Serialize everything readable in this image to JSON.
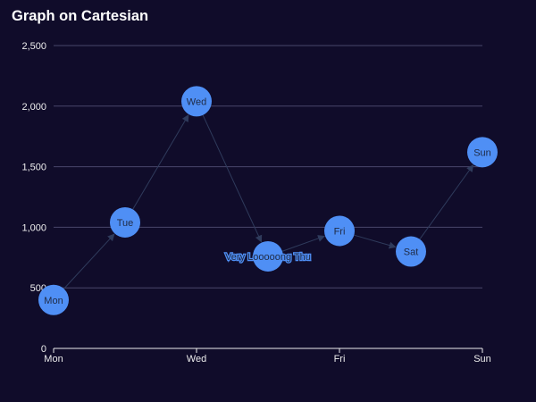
{
  "title": "Graph on Cartesian",
  "chart_data": {
    "type": "graph",
    "title": "Graph on Cartesian",
    "x_categories": [
      "Mon",
      "Tue",
      "Wed",
      "Thu",
      "Fri",
      "Sat",
      "Sun"
    ],
    "x_tick_labels": [
      "Mon",
      "Wed",
      "Fri",
      "Sun"
    ],
    "y_ticks": [
      0,
      500,
      1000,
      1500,
      2000,
      2500
    ],
    "y_tick_labels": [
      "0",
      "500",
      "1,000",
      "1,500",
      "2,000",
      "2,500"
    ],
    "ylim": [
      0,
      2500
    ],
    "grid": true,
    "nodes": [
      {
        "label": "Mon",
        "x": "Mon",
        "y": 400
      },
      {
        "label": "Tue",
        "x": "Tue",
        "y": 1040
      },
      {
        "label": "Wed",
        "x": "Wed",
        "y": 2040
      },
      {
        "label": "Very Looooong Thu",
        "x": "Thu",
        "y": 760
      },
      {
        "label": "Fri",
        "x": "Fri",
        "y": 970
      },
      {
        "label": "Sat",
        "x": "Sat",
        "y": 800
      },
      {
        "label": "Sun",
        "x": "Sun",
        "y": 1620
      }
    ],
    "links": [
      {
        "source": "Mon",
        "target": "Tue"
      },
      {
        "source": "Tue",
        "target": "Wed"
      },
      {
        "source": "Wed",
        "target": "Very Looooong Thu"
      },
      {
        "source": "Very Looooong Thu",
        "target": "Fri"
      },
      {
        "source": "Fri",
        "target": "Sat"
      },
      {
        "source": "Sat",
        "target": "Sun"
      }
    ],
    "colors": {
      "background": "#100c2a",
      "node": "#4f8ff5",
      "label": "#1f2a44",
      "edge": "#2f3b5c",
      "grid": "#48466b",
      "axis": "#eeeeee"
    }
  }
}
